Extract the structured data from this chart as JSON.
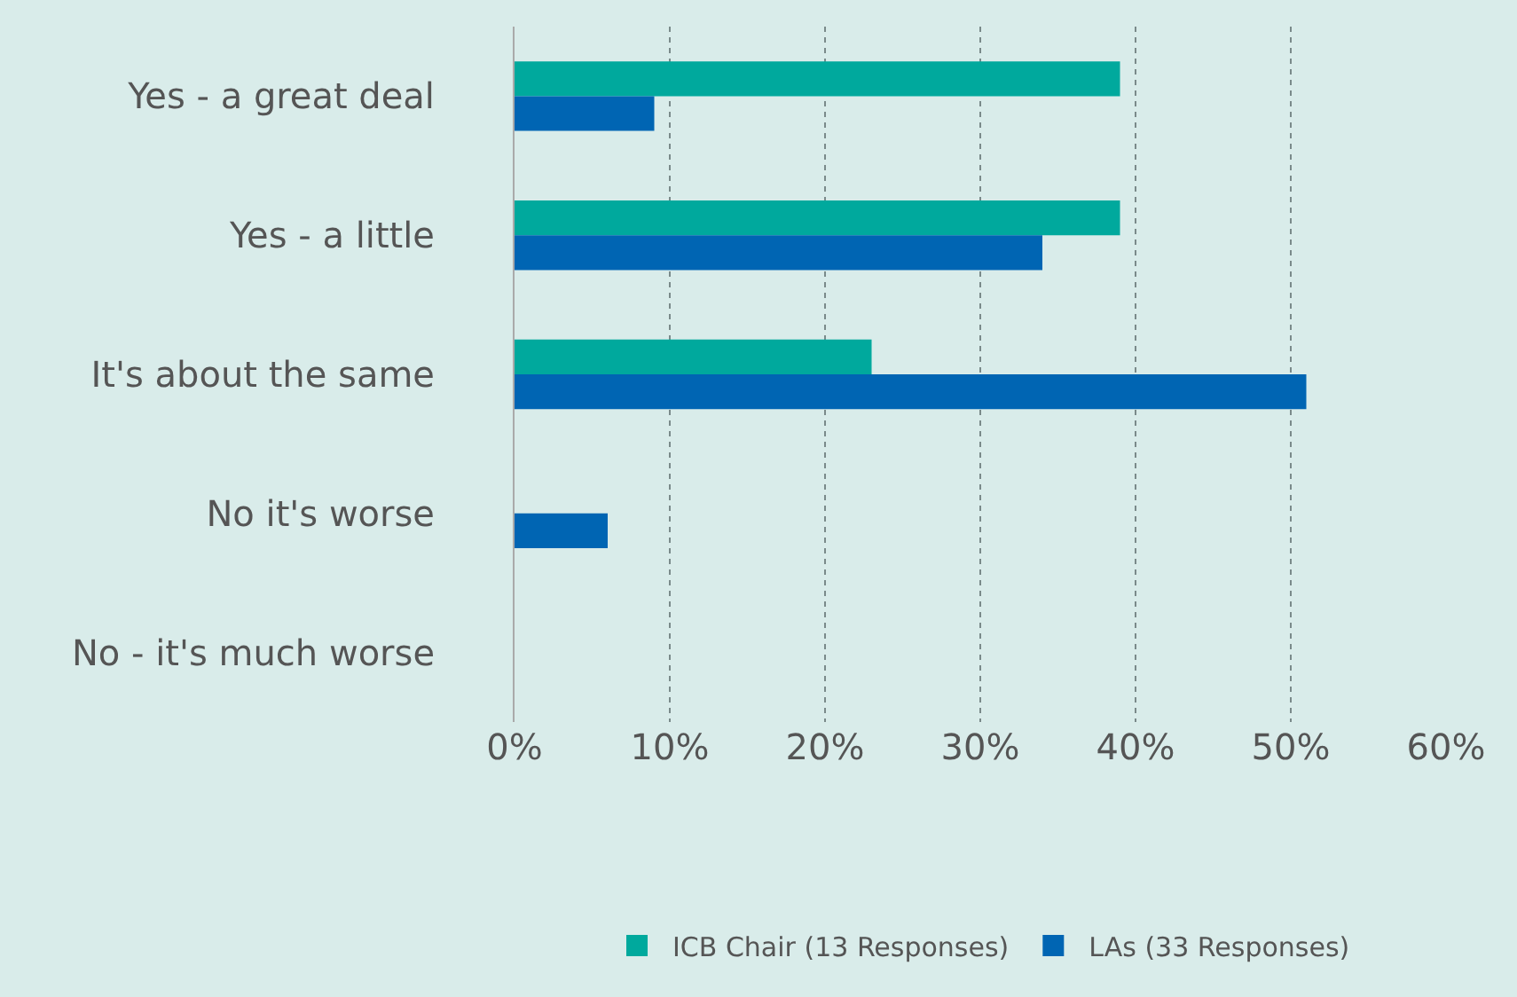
{
  "chart_data": {
    "type": "bar",
    "orientation": "horizontal",
    "categories": [
      "Yes - a great deal",
      "Yes - a little",
      "It's about the same",
      "No it's worse",
      "No - it's much worse"
    ],
    "series": [
      {
        "name": "ICB Chair (13 Responses)",
        "color": "#00a99d",
        "values": [
          39,
          39,
          23,
          0,
          0
        ]
      },
      {
        "name": "LAs (33 Responses)",
        "color": "#0065b3",
        "values": [
          9,
          34,
          51,
          6,
          0
        ]
      }
    ],
    "xlim": [
      0,
      60
    ],
    "xticks": [
      {
        "value": 0,
        "label": "0%"
      },
      {
        "value": 10,
        "label": "10%"
      },
      {
        "value": 20,
        "label": "20%"
      },
      {
        "value": 30,
        "label": "30%"
      },
      {
        "value": 40,
        "label": "40%"
      },
      {
        "value": 50,
        "label": "50%"
      },
      {
        "value": 60,
        "label": "60%"
      }
    ],
    "grid": "x",
    "legend": "bottom"
  }
}
